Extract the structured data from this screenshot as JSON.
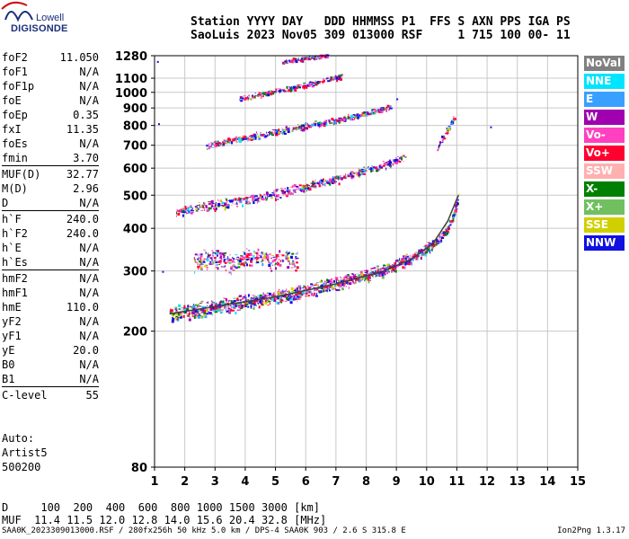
{
  "logo": {
    "line1": "Lowell",
    "line2": "DIGISONDE"
  },
  "header": {
    "line1": "Station YYYY DAY   DDD HHMMSS P1  FFS S AXN PPS IGA PS",
    "line2": "SaoLuis 2023 Nov05 309 013000 RSF     1 715 100 00- 11"
  },
  "params_groups": [
    [
      {
        "name": "foF2",
        "value": "11.050"
      },
      {
        "name": "foF1",
        "value": "N/A"
      },
      {
        "name": "foF1p",
        "value": "N/A"
      },
      {
        "name": "foE",
        "value": "N/A"
      },
      {
        "name": "foEp",
        "value": "0.35"
      },
      {
        "name": "fxI",
        "value": "11.35"
      },
      {
        "name": "foEs",
        "value": "N/A"
      },
      {
        "name": "fmin",
        "value": "3.70"
      }
    ],
    [
      {
        "name": "MUF(D)",
        "value": "32.77"
      },
      {
        "name": "M(D)",
        "value": "2.96"
      },
      {
        "name": "D",
        "value": "N/A"
      }
    ],
    [
      {
        "name": "h`F",
        "value": "240.0"
      },
      {
        "name": "h`F2",
        "value": "240.0"
      },
      {
        "name": "h`E",
        "value": "N/A"
      },
      {
        "name": "h`Es",
        "value": "N/A"
      }
    ],
    [
      {
        "name": "hmF2",
        "value": "N/A"
      },
      {
        "name": "hmF1",
        "value": "N/A"
      },
      {
        "name": "hmE",
        "value": "110.0"
      },
      {
        "name": "yF2",
        "value": "N/A"
      },
      {
        "name": "yF1",
        "value": "N/A"
      },
      {
        "name": "yE",
        "value": "20.0"
      },
      {
        "name": "B0",
        "value": "N/A"
      },
      {
        "name": "B1",
        "value": "N/A"
      }
    ],
    [
      {
        "name": "C-level",
        "value": "55"
      }
    ]
  ],
  "auto": {
    "line1": "Auto:",
    "line2": "Artist5",
    "line3": "500200"
  },
  "d_row": "D     100  200  400  600  800 1000 1500 3000 [km]",
  "muf_row": "MUF  11.4 11.5 12.0 12.8 14.0 15.6 20.4 32.8 [MHz]",
  "footer": "SAA0K_2023309013000.RSF / 280fx256h 50 kHz 5.0 km / DPS-4 SAA0K 903 / 2.6 S 315.8 E",
  "version": "Ion2Png 1.3.17",
  "legend": [
    {
      "label": "NoVal",
      "color": "#808080"
    },
    {
      "label": "NNE",
      "color": "#00e5ff"
    },
    {
      "label": "E",
      "color": "#3aa0ff"
    },
    {
      "label": "W",
      "color": "#a000b0"
    },
    {
      "label": "Vo-",
      "color": "#ff40c0"
    },
    {
      "label": "Vo+",
      "color": "#ff0030"
    },
    {
      "label": "SSW",
      "color": "#ffb0b0"
    },
    {
      "label": "X-",
      "color": "#008000"
    },
    {
      "label": "X+",
      "color": "#70c060"
    },
    {
      "label": "SSE",
      "color": "#d0d000"
    },
    {
      "label": "NNW",
      "color": "#1010e0"
    }
  ],
  "chart_data": {
    "type": "scatter",
    "xlabel": "",
    "ylabel": "",
    "xlim": [
      1,
      15
    ],
    "x_ticks": [
      1,
      2,
      3,
      4,
      5,
      6,
      7,
      8,
      9,
      10,
      11,
      12,
      13,
      14,
      15
    ],
    "y_ticks": [
      80,
      200,
      300,
      400,
      500,
      600,
      700,
      800,
      900,
      1000,
      1100,
      1280
    ],
    "y_scale": "log",
    "grid": true,
    "traces": [
      {
        "name": "F2 trace",
        "x": [
          1.5,
          2.5,
          3.5,
          4.5,
          5.5,
          6.5,
          7.5,
          8.5,
          9.5,
          10.0,
          10.5,
          10.8,
          11.05
        ],
        "y": [
          225,
          232,
          240,
          248,
          258,
          270,
          285,
          300,
          330,
          350,
          380,
          420,
          500
        ]
      },
      {
        "name": "2nd hop",
        "x": [
          1.7,
          2.5,
          3.5,
          4.5,
          5.5,
          6.5,
          7.5,
          8.5,
          9.3
        ],
        "y": [
          450,
          462,
          478,
          495,
          518,
          545,
          575,
          610,
          650
        ]
      },
      {
        "name": "3rd hop",
        "x": [
          2.7,
          3.2,
          4,
          5,
          6,
          7,
          8,
          8.8
        ],
        "y": [
          700,
          715,
          740,
          770,
          800,
          830,
          870,
          910
        ]
      },
      {
        "name": "4th hop",
        "x": [
          3.8,
          4.5,
          5.5,
          6.5,
          7.2
        ],
        "y": [
          960,
          990,
          1030,
          1080,
          1120
        ]
      },
      {
        "name": "5th hop",
        "x": [
          5.2,
          6,
          6.7
        ],
        "y": [
          1230,
          1265,
          1285
        ]
      },
      {
        "name": "high-frequency tail",
        "x": [
          10.3,
          10.6,
          10.9
        ],
        "y": [
          680,
          760,
          850
        ]
      },
      {
        "name": "Es/low echoes",
        "x": [
          2.3,
          3,
          3.6,
          4.2,
          4.8,
          5.3,
          5.7
        ],
        "y": [
          320,
          330,
          315,
          335,
          325,
          330,
          320
        ]
      }
    ],
    "fit_curve": {
      "x": [
        1.5,
        3,
        5,
        7,
        8.5,
        9.5,
        10.2,
        10.7,
        11.05
      ],
      "y": [
        225,
        236,
        252,
        275,
        298,
        325,
        360,
        420,
        500
      ]
    },
    "isolated_points": [
      {
        "x": 1.08,
        "y": 1235
      },
      {
        "x": 1.12,
        "y": 812
      },
      {
        "x": 1.25,
        "y": 300
      },
      {
        "x": 12.1,
        "y": 795
      },
      {
        "x": 9.0,
        "y": 960
      }
    ]
  }
}
